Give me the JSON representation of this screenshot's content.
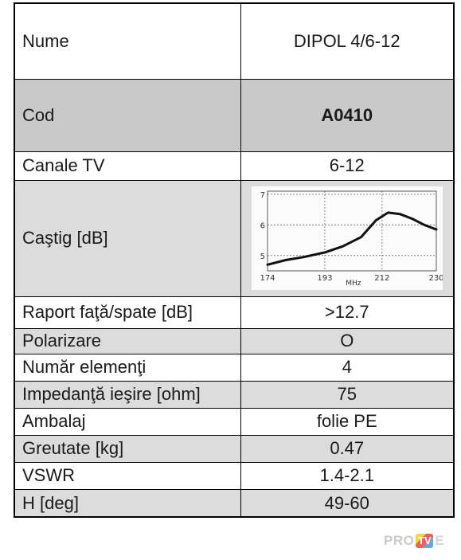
{
  "rows": [
    {
      "label": "Nume",
      "value": "DIPOL 4/6-12"
    },
    {
      "label": "Cod",
      "value": "A0410"
    },
    {
      "label": "Canale TV",
      "value": "6-12"
    },
    {
      "label": "Caştig [dB]",
      "value": ""
    },
    {
      "label": "Raport faţă/spate [dB]",
      "value": ">12.7"
    },
    {
      "label": "Polarizare",
      "value": "O"
    },
    {
      "label": "Număr elemenţi",
      "value": "4"
    },
    {
      "label": "Impedanţă ieşire [ohm]",
      "value": "75"
    },
    {
      "label": "Ambalaj",
      "value": "folie PE"
    },
    {
      "label": "Greutate [kg]",
      "value": "0.47"
    },
    {
      "label": "VSWR",
      "value": "1.4-2.1"
    },
    {
      "label": "H [deg]",
      "value": "49-60"
    }
  ],
  "chart_data": {
    "type": "line",
    "x": [
      174,
      180,
      186,
      193,
      199,
      205,
      210,
      214,
      218,
      222,
      226,
      230
    ],
    "y": [
      4.7,
      4.85,
      4.95,
      5.1,
      5.3,
      5.6,
      6.15,
      6.4,
      6.35,
      6.2,
      6.0,
      5.85
    ],
    "x_ticks": [
      "174",
      "193",
      "212",
      "230"
    ],
    "y_ticks": [
      "5",
      "6",
      "7"
    ],
    "xlabel": "MHz",
    "xlim": [
      174,
      230
    ],
    "ylim": [
      4.5,
      7.1
    ],
    "grid": true
  },
  "logo": {
    "pro": "PRO",
    "tv": "TV",
    "tail": "E"
  },
  "colors": {
    "row_grey": "#dcdcdc",
    "row_code": "#c9c9c9",
    "curve": "#111111",
    "grid": "#666666"
  }
}
